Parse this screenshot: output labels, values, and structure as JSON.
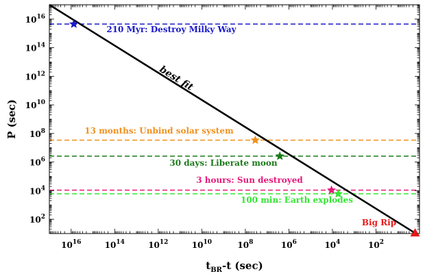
{
  "chart_data": {
    "type": "line",
    "title": "",
    "xlabel_main": "t",
    "xlabel_sub": "BR",
    "xlabel_rest": "-t (sec)",
    "ylabel": "P (sec)",
    "x_scale": "log",
    "y_scale": "log",
    "x_reversed": true,
    "xlim": [
      1e+17,
      1.0
    ],
    "ylim": [
      10.0,
      1e+17
    ],
    "x_ticks": [
      {
        "value": 1e+16,
        "base": "10",
        "exp": "16"
      },
      {
        "value": 100000000000000.0,
        "base": "10",
        "exp": "14"
      },
      {
        "value": 1000000000000.0,
        "base": "10",
        "exp": "12"
      },
      {
        "value": 10000000000.0,
        "base": "10",
        "exp": "10"
      },
      {
        "value": 100000000.0,
        "base": "10",
        "exp": "8"
      },
      {
        "value": 1000000.0,
        "base": "10",
        "exp": "6"
      },
      {
        "value": 10000.0,
        "base": "10",
        "exp": "4"
      },
      {
        "value": 100.0,
        "base": "10",
        "exp": "2"
      }
    ],
    "y_ticks": [
      {
        "value": 1e+16,
        "base": "10",
        "exp": "16"
      },
      {
        "value": 100000000000000.0,
        "base": "10",
        "exp": "14"
      },
      {
        "value": 1000000000000.0,
        "base": "10",
        "exp": "12"
      },
      {
        "value": 10000000000.0,
        "base": "10",
        "exp": "10"
      },
      {
        "value": 100000000.0,
        "base": "10",
        "exp": "8"
      },
      {
        "value": 1000000.0,
        "base": "10",
        "exp": "6"
      },
      {
        "value": 10000.0,
        "base": "10",
        "exp": "4"
      },
      {
        "value": 100.0,
        "base": "10",
        "exp": "2"
      }
    ],
    "fit_line": {
      "label": "best fit",
      "color": "#000000",
      "points": [
        {
          "x": 1e+17,
          "y": 1e+17
        },
        {
          "x": 1.6,
          "y": 10.8
        }
      ]
    },
    "events": [
      {
        "label": "210 Myr: Destroy Milky Way",
        "color": "#1a1ac8",
        "y": 4500000000000000.0,
        "x": 7500000000000000.0,
        "marker": "star"
      },
      {
        "label": "13 months: Unbind solar system",
        "color": "#f0901e",
        "y": 34000000.0,
        "x": 35000000.0,
        "marker": "star"
      },
      {
        "label": "30 days: Liberate moon",
        "color": "#1a7a1a",
        "y": 2600000.0,
        "x": 2600000.0,
        "marker": "star"
      },
      {
        "label": "3 hours: Sun destroyed",
        "color": "#e6197a",
        "y": 10800.0,
        "x": 11000.0,
        "marker": "star"
      },
      {
        "label": "100 min: Earth explodes",
        "color": "#33e633",
        "y": 6000.0,
        "x": 5400.0,
        "marker": "star"
      },
      {
        "label": "Big Rip",
        "color": "#e61919",
        "y": 10.8,
        "x": 1.6,
        "marker": "triangle"
      }
    ]
  }
}
